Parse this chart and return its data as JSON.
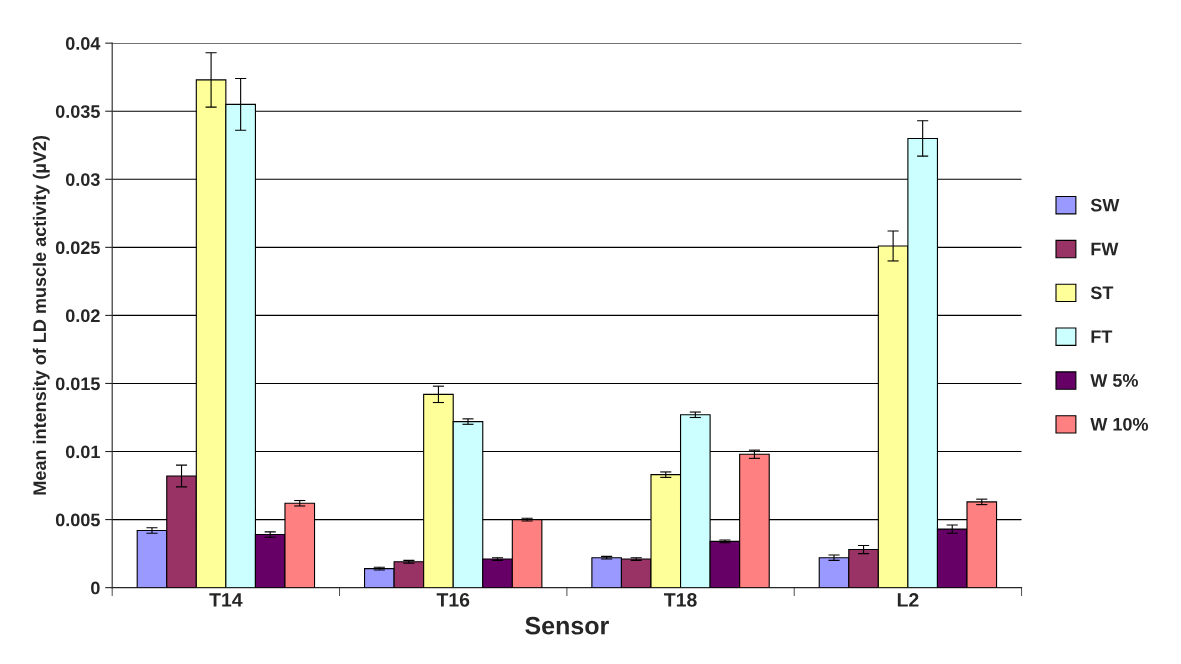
{
  "chart_data": {
    "type": "bar",
    "xlabel": "Sensor",
    "ylabel": "Mean intensity of LD muscle activity (µV2)",
    "categories": [
      "T14",
      "T16",
      "T18",
      "L2"
    ],
    "series": [
      {
        "name": "SW",
        "color": "#9999ff",
        "values": [
          0.0042,
          0.0014,
          0.0022,
          0.0022
        ],
        "errors": [
          0.0002,
          0.0001,
          0.0001,
          0.0002
        ]
      },
      {
        "name": "FW",
        "color": "#993366",
        "values": [
          0.0082,
          0.0019,
          0.0021,
          0.0028
        ],
        "errors": [
          0.0008,
          0.0001,
          0.0001,
          0.0003
        ]
      },
      {
        "name": "ST",
        "color": "#ffff99",
        "values": [
          0.0373,
          0.0142,
          0.0083,
          0.0251
        ],
        "errors": [
          0.002,
          0.0006,
          0.0002,
          0.0011
        ]
      },
      {
        "name": "FT",
        "color": "#ccffff",
        "values": [
          0.0355,
          0.0122,
          0.0127,
          0.033
        ],
        "errors": [
          0.0019,
          0.0002,
          0.0002,
          0.0013
        ]
      },
      {
        "name": "W 5%",
        "color": "#660066",
        "values": [
          0.0039,
          0.0021,
          0.0034,
          0.0043
        ],
        "errors": [
          0.0002,
          0.0001,
          0.0001,
          0.0003
        ]
      },
      {
        "name": "W 10%",
        "color": "#ff8080",
        "values": [
          0.0062,
          0.005,
          0.0098,
          0.0063
        ],
        "errors": [
          0.0002,
          0.0001,
          0.0003,
          0.0002
        ]
      }
    ],
    "ylim": [
      0,
      0.04
    ],
    "yticks": [
      0,
      0.005,
      0.01,
      0.015,
      0.02,
      0.025,
      0.03,
      0.035,
      0.04
    ],
    "grid": "y",
    "legend": "right"
  }
}
